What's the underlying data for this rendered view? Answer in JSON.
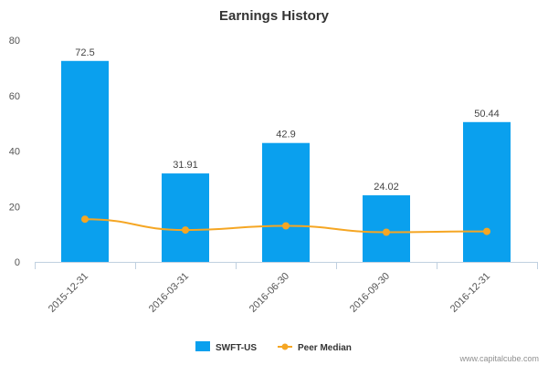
{
  "chart_data": {
    "type": "bar",
    "title": "Earnings History",
    "xlabel": "",
    "ylabel": "",
    "categories": [
      "2015-12-31",
      "2016-03-31",
      "2016-06-30",
      "2016-09-30",
      "2016-12-31"
    ],
    "series": [
      {
        "name": "SWFT-US",
        "type": "bar",
        "color": "#0aa0ee",
        "values": [
          72.5,
          31.91,
          42.9,
          24.02,
          50.44
        ],
        "labels": [
          "72.5",
          "31.91",
          "42.9",
          "24.02",
          "50.44"
        ]
      },
      {
        "name": "Peer Median",
        "type": "line",
        "color": "#f5a623",
        "values": [
          15.4,
          11.5,
          13.0,
          10.7,
          11.0
        ]
      }
    ],
    "ylim": [
      0,
      80
    ],
    "yticks": [
      "0",
      "20",
      "40",
      "60",
      "80"
    ],
    "grid": false,
    "legend_position": "bottom-center"
  },
  "credit": "www.capitalcube.com"
}
